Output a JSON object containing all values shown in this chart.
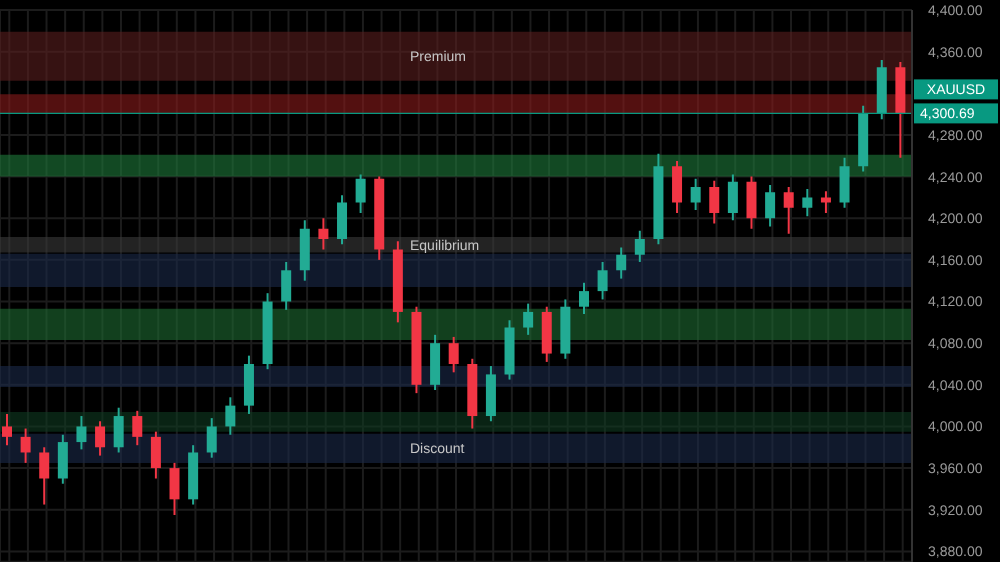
{
  "chart_data": {
    "type": "candlestick",
    "categories": [
      null,
      null,
      null,
      null,
      null,
      null,
      null,
      null,
      null,
      null,
      null,
      null,
      null,
      null,
      null,
      null,
      null,
      null,
      null,
      null,
      null,
      null,
      null,
      null,
      null,
      null,
      null,
      null,
      null,
      null,
      null,
      null,
      null,
      null,
      null,
      null,
      null,
      null,
      null,
      null,
      null,
      null,
      null,
      null,
      null,
      null,
      null,
      null,
      null
    ],
    "ohlc": [
      [
        4000,
        4012,
        3982,
        3990
      ],
      [
        3990,
        3998,
        3965,
        3975
      ],
      [
        3975,
        3980,
        3925,
        3950
      ],
      [
        3950,
        3992,
        3945,
        3985
      ],
      [
        3985,
        4010,
        3978,
        4000
      ],
      [
        4000,
        4005,
        3972,
        3980
      ],
      [
        3980,
        4018,
        3975,
        4010
      ],
      [
        4010,
        4015,
        3982,
        3990
      ],
      [
        3990,
        3995,
        3950,
        3960
      ],
      [
        3960,
        3965,
        3915,
        3930
      ],
      [
        3930,
        3982,
        3925,
        3975
      ],
      [
        3975,
        4008,
        3970,
        4000
      ],
      [
        4000,
        4028,
        3992,
        4020
      ],
      [
        4020,
        4068,
        4012,
        4060
      ],
      [
        4060,
        4128,
        4055,
        4120
      ],
      [
        4120,
        4158,
        4112,
        4150
      ],
      [
        4150,
        4198,
        4140,
        4190
      ],
      [
        4190,
        4200,
        4170,
        4180
      ],
      [
        4180,
        4222,
        4175,
        4215
      ],
      [
        4215,
        4242,
        4205,
        4238
      ],
      [
        4238,
        4240,
        4160,
        4170
      ],
      [
        4170,
        4178,
        4100,
        4110
      ],
      [
        4110,
        4115,
        4032,
        4040
      ],
      [
        4040,
        4088,
        4035,
        4080
      ],
      [
        4080,
        4086,
        4052,
        4060
      ],
      [
        4060,
        4065,
        3998,
        4010
      ],
      [
        4010,
        4058,
        4005,
        4050
      ],
      [
        4050,
        4102,
        4045,
        4095
      ],
      [
        4095,
        4118,
        4088,
        4110
      ],
      [
        4110,
        4115,
        4062,
        4070
      ],
      [
        4070,
        4122,
        4065,
        4115
      ],
      [
        4115,
        4138,
        4108,
        4130
      ],
      [
        4130,
        4158,
        4122,
        4150
      ],
      [
        4150,
        4172,
        4142,
        4165
      ],
      [
        4165,
        4188,
        4158,
        4180
      ],
      [
        4180,
        4262,
        4175,
        4250
      ],
      [
        4250,
        4255,
        4205,
        4215
      ],
      [
        4215,
        4238,
        4208,
        4230
      ],
      [
        4230,
        4236,
        4195,
        4205
      ],
      [
        4205,
        4242,
        4198,
        4235
      ],
      [
        4235,
        4240,
        4190,
        4200
      ],
      [
        4200,
        4232,
        4192,
        4225
      ],
      [
        4225,
        4230,
        4185,
        4210
      ],
      [
        4210,
        4228,
        4202,
        4220
      ],
      [
        4220,
        4226,
        4205,
        4215
      ],
      [
        4215,
        4258,
        4210,
        4250
      ],
      [
        4250,
        4308,
        4245,
        4300
      ],
      [
        4300,
        4352,
        4295,
        4345
      ],
      [
        4345,
        4350,
        4258,
        4300.69
      ]
    ],
    "ylim": [
      3870,
      4400
    ],
    "yticks": [
      {
        "value": 3880,
        "label": "3,880.00"
      },
      {
        "value": 3920,
        "label": "3,920.00"
      },
      {
        "value": 3960,
        "label": "3,960.00"
      },
      {
        "value": 4000,
        "label": "4,000.00"
      },
      {
        "value": 4040,
        "label": "4,040.00"
      },
      {
        "value": 4080,
        "label": "4,080.00"
      },
      {
        "value": 4120,
        "label": "4,120.00"
      },
      {
        "value": 4160,
        "label": "4,160.00"
      },
      {
        "value": 4200,
        "label": "4,200.00"
      },
      {
        "value": 4240,
        "label": "4,240.00"
      },
      {
        "value": 4280,
        "label": "4,280.00"
      },
      {
        "value": 4360,
        "label": "4,360.00"
      },
      {
        "value": 4400,
        "label": "4,400.00"
      }
    ],
    "grid": true,
    "bands": [
      {
        "axis": "y",
        "from": 4332,
        "to": 4379,
        "label": "Premium",
        "color": "#5a1e1e"
      },
      {
        "axis": "y",
        "from": 4301,
        "to": 4319,
        "color": "#8b1a1a"
      },
      {
        "axis": "y",
        "from": 4240,
        "to": 4261,
        "color": "#1e7a3a"
      },
      {
        "axis": "y",
        "from": 4167,
        "to": 4182,
        "label": "Equilibrium",
        "color": "#3a3a3a"
      },
      {
        "axis": "y",
        "from": 4134,
        "to": 4166,
        "color": "#1a2a4a"
      },
      {
        "axis": "y",
        "from": 4083,
        "to": 4113,
        "color": "#1e6a32"
      },
      {
        "axis": "y",
        "from": 4038,
        "to": 4058,
        "color": "#1a2a4a"
      },
      {
        "axis": "y",
        "from": 3995,
        "to": 4014,
        "color": "#0f3a22"
      },
      {
        "axis": "y",
        "from": 3965,
        "to": 3993,
        "label": "Discount",
        "color": "#1a2a4a"
      }
    ],
    "ref_lines": [
      {
        "axis": "y",
        "value": 4300.69,
        "label": "4,300.69",
        "color": "#089981"
      }
    ],
    "annotations": [
      "XAUUSD"
    ]
  }
}
